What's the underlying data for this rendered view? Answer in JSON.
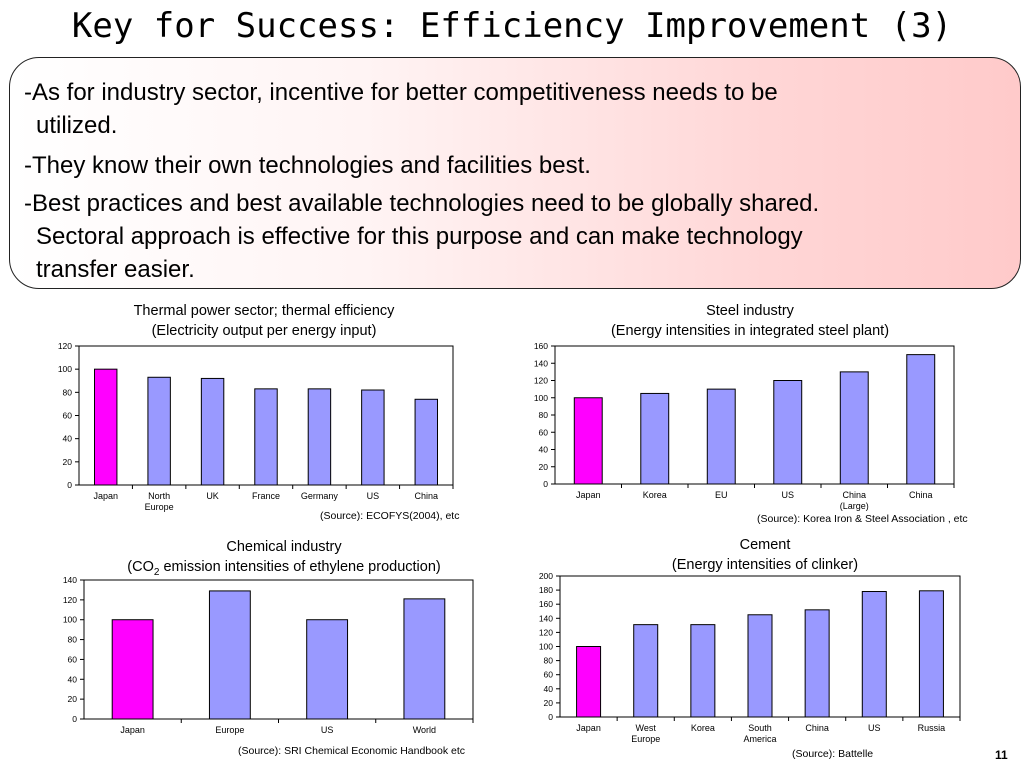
{
  "slide": {
    "title": "Key for Success: Efficiency Improvement (3)",
    "bullets": [
      {
        "lines": [
          "-As for industry sector, incentive for better competitiveness needs to be",
          "utilized."
        ]
      },
      {
        "lines": [
          "-They know their own technologies and facilities best."
        ]
      },
      {
        "lines": [
          "-Best practices and best available technologies need to be globally shared.",
          "Sectoral approach is effective for this purpose and can make technology",
          "transfer easier."
        ]
      }
    ],
    "page_number": "11",
    "colors": {
      "highlight_bar": "#ff00ff",
      "bar": "#9999ff",
      "box_gradient_end": "#ffcaca"
    }
  },
  "captions": {
    "thermal": [
      "Thermal power sector; thermal efficiency",
      "(Electricity output per energy input)"
    ],
    "steel": [
      "Steel industry",
      "(Energy intensities in integrated steel plant)"
    ],
    "chemical_line1": "Chemical industry",
    "chemical_line2_pre": "(CO",
    "chemical_line2_sub": "2",
    "chemical_line2_post": " emission intensities of ethylene production)",
    "cement": [
      "Cement",
      "(Energy intensities of clinker)"
    ]
  },
  "sources": {
    "thermal": "(Source): ECOFYS(2004), etc",
    "steel": "(Source): Korea Iron & Steel Association , etc",
    "chemical": "(Source): SRI Chemical Economic Handbook etc",
    "cement": "(Source): Battelle"
  },
  "chart_data": [
    {
      "id": "thermal",
      "type": "bar",
      "categories": [
        [
          "Japan"
        ],
        [
          "North",
          "Europe"
        ],
        [
          "UK"
        ],
        [
          "France"
        ],
        [
          "Germany"
        ],
        [
          "US"
        ],
        [
          "China"
        ]
      ],
      "values": [
        100,
        93,
        92,
        83,
        83,
        82,
        74
      ],
      "highlight_index": 0,
      "ylim": [
        0,
        120
      ],
      "yticks": [
        0,
        20,
        40,
        60,
        80,
        100,
        120
      ],
      "grid": false
    },
    {
      "id": "steel",
      "type": "bar",
      "categories": [
        [
          "Japan"
        ],
        [
          "Korea"
        ],
        [
          "EU"
        ],
        [
          "US"
        ],
        [
          "China",
          "(Large)"
        ],
        [
          "China"
        ]
      ],
      "values": [
        100,
        105,
        110,
        120,
        130,
        150
      ],
      "highlight_index": 0,
      "ylim": [
        0,
        160
      ],
      "yticks": [
        0,
        20,
        40,
        60,
        80,
        100,
        120,
        140,
        160
      ],
      "grid": false
    },
    {
      "id": "chemical",
      "type": "bar",
      "categories": [
        [
          "Japan"
        ],
        [
          "Europe"
        ],
        [
          "US"
        ],
        [
          "World"
        ]
      ],
      "values": [
        100,
        129,
        100,
        121
      ],
      "highlight_index": 0,
      "ylim": [
        0,
        140
      ],
      "yticks": [
        0,
        20,
        40,
        60,
        80,
        100,
        120,
        140
      ],
      "grid": false
    },
    {
      "id": "cement",
      "type": "bar",
      "categories": [
        [
          "Japan"
        ],
        [
          "West",
          "Europe"
        ],
        [
          "Korea"
        ],
        [
          "South",
          "America"
        ],
        [
          "China"
        ],
        [
          "US"
        ],
        [
          "Russia"
        ]
      ],
      "values": [
        100,
        131,
        131,
        145,
        152,
        178,
        179
      ],
      "highlight_index": 0,
      "ylim": [
        0,
        200
      ],
      "yticks": [
        0,
        20,
        40,
        60,
        80,
        100,
        120,
        140,
        160,
        180,
        200
      ],
      "grid": false
    }
  ]
}
